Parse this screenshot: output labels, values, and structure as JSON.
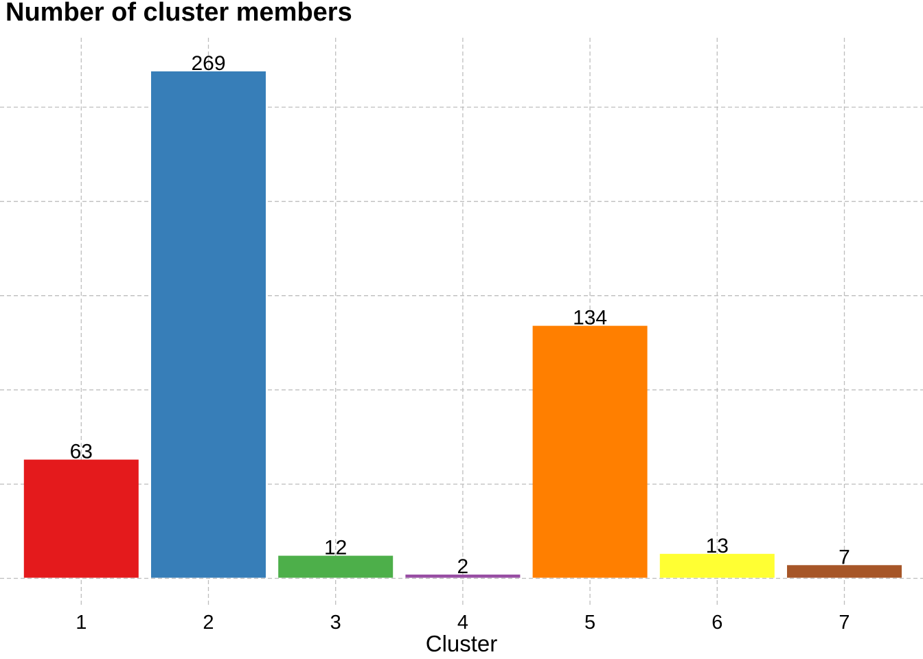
{
  "chart": {
    "title": "Number of cluster members",
    "xlabel": "Cluster"
  },
  "chart_data": {
    "type": "bar",
    "title": "Number of cluster members",
    "xlabel": "Cluster",
    "ylabel": "",
    "categories": [
      "1",
      "2",
      "3",
      "4",
      "5",
      "6",
      "7"
    ],
    "values": [
      63,
      269,
      12,
      2,
      134,
      13,
      7
    ],
    "value_labels": [
      "63",
      "269",
      "12",
      "2",
      "134",
      "13",
      "7"
    ],
    "bar_colors": [
      "#E41A1C",
      "#377EB8",
      "#4DAF4A",
      "#984EA3",
      "#FF7F00",
      "#FFFF33",
      "#A65628"
    ],
    "ylim": [
      0,
      287
    ],
    "y_gridlines": [
      0,
      50,
      100,
      150,
      200,
      250
    ],
    "grid": "dashed major gridlines, horizontal every 50 units and vertical at each category center",
    "legend_position": "none",
    "colors": {
      "background": "#FFFFFF",
      "gridline": "#BDBDBD",
      "text": "#000000"
    }
  }
}
